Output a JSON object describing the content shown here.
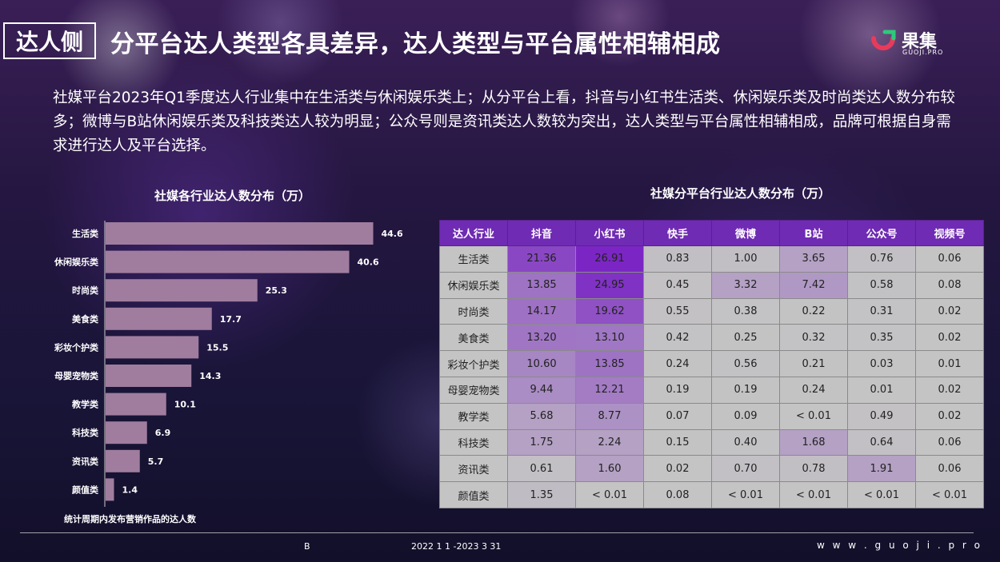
{
  "header": {
    "tag": "达人侧",
    "title": "分平台达人类型各具差异，达人类型与平台属性相辅相成",
    "logo_cn": "果集",
    "logo_en": "GUOJI.PRO"
  },
  "intro": "社媒平台2023年Q1季度达人行业集中在生活类与休闲娱乐类上；从分平台上看，抖音与小红书生活类、休闲娱乐类及时尚类达人数分布较多；微博与B站休闲娱乐类及科技类达人较为明显；公众号则是资讯类达人数较为突出，达人类型与平台属性相辅相成，品牌可根据自身需求进行达人及平台选择。",
  "note": "统计周期内发布营销作品的达人数",
  "footer": {
    "left": "B",
    "middle": "2022   1   1   -2023   3   31",
    "url": "w w w . g u o j i . p r o"
  },
  "colors": {
    "bar": "#a07d9e",
    "header": "#6f2bb3",
    "cell_base": "#c4c4c4",
    "heat_max": "#7b26c4"
  },
  "chart_data": [
    {
      "type": "bar",
      "orientation": "horizontal",
      "title": "社媒各行业达人数分布（万）",
      "categories": [
        "生活类",
        "休闲娱乐类",
        "时尚类",
        "美食类",
        "彩妆个护类",
        "母婴宠物类",
        "教学类",
        "科技类",
        "资讯类",
        "颜值类"
      ],
      "values": [
        44.6,
        40.6,
        25.3,
        17.7,
        15.5,
        14.3,
        10.1,
        6.9,
        5.7,
        1.4
      ],
      "xlim": [
        0,
        50
      ]
    },
    {
      "type": "heatmap",
      "title": "社媒分平台行业达人数分布（万）",
      "corner": "达人行业",
      "columns": [
        "抖音",
        "小红书",
        "快手",
        "微博",
        "B站",
        "公众号",
        "视频号"
      ],
      "rows": [
        {
          "label": "生活类",
          "values": [
            "21.36",
            "26.91",
            "0.83",
            "1.00",
            "3.65",
            "0.76",
            "0.06"
          ]
        },
        {
          "label": "休闲娱乐类",
          "values": [
            "13.85",
            "24.95",
            "0.45",
            "3.32",
            "7.42",
            "0.58",
            "0.08"
          ]
        },
        {
          "label": "时尚类",
          "values": [
            "14.17",
            "19.62",
            "0.55",
            "0.38",
            "0.22",
            "0.31",
            "0.02"
          ]
        },
        {
          "label": "美食类",
          "values": [
            "13.20",
            "13.10",
            "0.42",
            "0.25",
            "0.32",
            "0.35",
            "0.02"
          ]
        },
        {
          "label": "彩妆个护类",
          "values": [
            "10.60",
            "13.85",
            "0.24",
            "0.56",
            "0.21",
            "0.03",
            "0.01"
          ]
        },
        {
          "label": "母婴宠物类",
          "values": [
            "9.44",
            "12.21",
            "0.19",
            "0.19",
            "0.24",
            "0.01",
            "0.02"
          ]
        },
        {
          "label": "教学类",
          "values": [
            "5.68",
            "8.77",
            "0.07",
            "0.09",
            "< 0.01",
            "0.49",
            "0.02"
          ]
        },
        {
          "label": "科技类",
          "values": [
            "1.75",
            "2.24",
            "0.15",
            "0.40",
            "1.68",
            "0.64",
            "0.06"
          ]
        },
        {
          "label": "资讯类",
          "values": [
            "0.61",
            "1.60",
            "0.02",
            "0.70",
            "0.78",
            "1.91",
            "0.06"
          ]
        },
        {
          "label": "颜值类",
          "values": [
            "1.35",
            "< 0.01",
            "0.08",
            "< 0.01",
            "< 0.01",
            "< 0.01",
            "< 0.01"
          ]
        }
      ]
    }
  ]
}
